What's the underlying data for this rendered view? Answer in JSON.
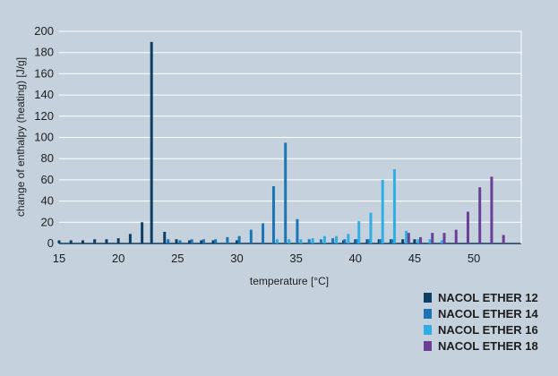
{
  "chart_data": {
    "type": "bar",
    "xlabel": "temperature [°C]",
    "ylabel": "change of enthalpy (heating) [J/g]",
    "xlim": [
      15,
      54
    ],
    "ylim": [
      0,
      200
    ],
    "x_ticks": [
      15,
      20,
      25,
      30,
      35,
      40,
      45,
      50
    ],
    "y_ticks": [
      0,
      20,
      40,
      60,
      80,
      100,
      120,
      140,
      160,
      180,
      200
    ],
    "grid": "horizontal",
    "legend_position": "bottom-right",
    "series": [
      {
        "name": "NACOL ETHER 12",
        "color": "#0d3e66",
        "points": [
          [
            15,
            3
          ],
          [
            16,
            3
          ],
          [
            17,
            3
          ],
          [
            18,
            4
          ],
          [
            19,
            4
          ],
          [
            20,
            5
          ],
          [
            21,
            9
          ],
          [
            22,
            20
          ],
          [
            22.8,
            190
          ],
          [
            23.9,
            11
          ],
          [
            24.9,
            4
          ],
          [
            26,
            3
          ],
          [
            27,
            3
          ],
          [
            28,
            3
          ],
          [
            30,
            3
          ],
          [
            39,
            3
          ],
          [
            40,
            4
          ],
          [
            41,
            4
          ],
          [
            42,
            4
          ],
          [
            43,
            4
          ],
          [
            44,
            4
          ],
          [
            45,
            4
          ]
        ]
      },
      {
        "name": "NACOL ETHER 14",
        "color": "#1b75b5",
        "points": [
          [
            24.2,
            4
          ],
          [
            25.2,
            3
          ],
          [
            26.2,
            4
          ],
          [
            27.2,
            4
          ],
          [
            28.2,
            4
          ],
          [
            29.2,
            6
          ],
          [
            30.2,
            7
          ],
          [
            31.2,
            13
          ],
          [
            32.2,
            19
          ],
          [
            33.1,
            54
          ],
          [
            34.1,
            95
          ],
          [
            35.1,
            23
          ],
          [
            36.1,
            4
          ],
          [
            37.1,
            4
          ],
          [
            38.1,
            5
          ],
          [
            39.1,
            4
          ],
          [
            40.1,
            4
          ],
          [
            41.1,
            4
          ],
          [
            42.1,
            4
          ],
          [
            43.1,
            4
          ]
        ]
      },
      {
        "name": "NACOL ETHER 16",
        "color": "#2eaee4",
        "points": [
          [
            33.4,
            4
          ],
          [
            34.4,
            4
          ],
          [
            35.4,
            4
          ],
          [
            36.4,
            5
          ],
          [
            37.4,
            7
          ],
          [
            38.4,
            7
          ],
          [
            39.4,
            9
          ],
          [
            40.3,
            21
          ],
          [
            41.3,
            29
          ],
          [
            42.3,
            60
          ],
          [
            43.3,
            70
          ],
          [
            44.3,
            12
          ],
          [
            45.3,
            4
          ],
          [
            46.3,
            4
          ],
          [
            47.3,
            3
          ]
        ]
      },
      {
        "name": "NACOL ETHER 18",
        "color": "#6a3f96",
        "points": [
          [
            44.5,
            10
          ],
          [
            45.5,
            6
          ],
          [
            46.5,
            10
          ],
          [
            47.5,
            10
          ],
          [
            48.5,
            13
          ],
          [
            49.5,
            30
          ],
          [
            50.5,
            53
          ],
          [
            51.5,
            63
          ],
          [
            52.5,
            8
          ]
        ]
      }
    ]
  }
}
